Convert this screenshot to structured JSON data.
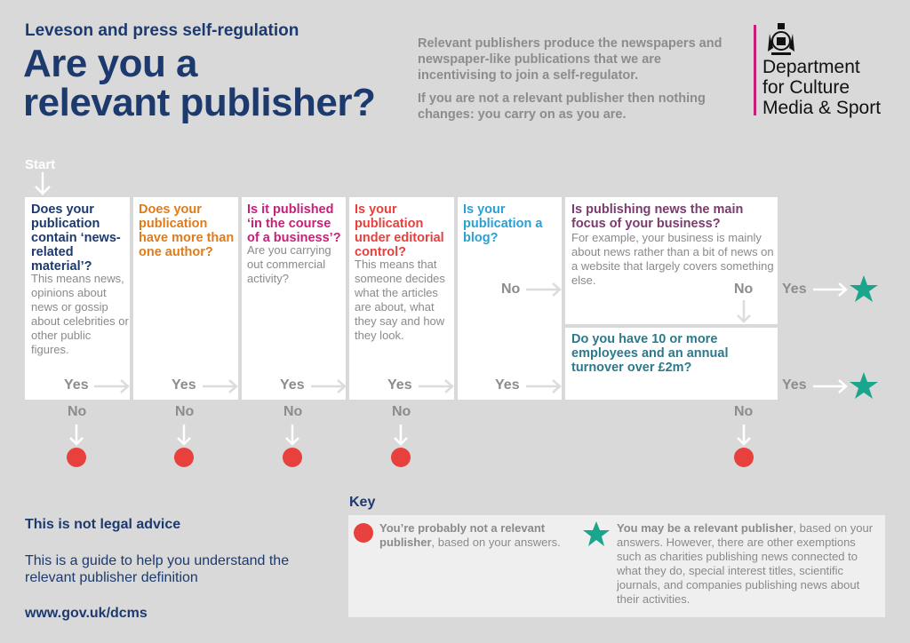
{
  "header": {
    "subtitle": "Leveson and press self-regulation",
    "title_line1": "Are you a",
    "title_line2": "relevant publisher?",
    "intro_p1": "Relevant publishers produce the newspapers and newspaper-like publications that we are incentivising to join a self-regulator.",
    "intro_p2": "If you are not a relevant publisher then nothing changes: you carry on as you are."
  },
  "logo": {
    "line1": "Department",
    "line2": "for Culture",
    "line3": "Media & Sport",
    "accent": "#c8207a",
    "icon": "royal-crest-icon"
  },
  "flow": {
    "start": "Start",
    "yes": "Yes",
    "no": "No",
    "steps": [
      {
        "question": "Does your publication contain ‘news-related material’?",
        "detail": "This means news, opinions about news or gossip about celebrities or other public figures.",
        "color": "#1d3a6e"
      },
      {
        "question": "Does your publication have more than one author?",
        "detail": "",
        "color": "#e07b1a"
      },
      {
        "question": "Is it published ‘in the course of a business’?",
        "detail": "Are you carrying out commercial activity?",
        "color": "#c8207a"
      },
      {
        "question": "Is your publication under editorial control?",
        "detail": "This means that someone decides what the articles are about, what they say and how they look.",
        "color": "#e8403c"
      },
      {
        "question": "Is your publication a blog?",
        "detail": "",
        "color": "#2aa0d4"
      },
      {
        "question": "Is publishing news the main focus of your business?",
        "detail": "For example, your business is mainly about news rather than a bit of news on a website that largely covers something else.",
        "color": "#7a3b6e"
      },
      {
        "question": "Do you have 10 or more employees and an annual turnover over £2m?",
        "detail": "",
        "color": "#2a7a8c"
      }
    ]
  },
  "key": {
    "title": "Key",
    "not_bold": "You’re probably not a relevant publisher",
    "not_rest": ", based on your answers.",
    "may_bold": "You may be a relevant publisher",
    "may_rest": ", based on your answers. However, there are other exemptions such as charities publishing news connected to what they do, special interest titles, scientific journals, and companies publishing news about their activities.",
    "red": "#e8403c",
    "green": "#1aa58c"
  },
  "footer": {
    "legal": "This is not legal advice",
    "guide": "This is a guide to help you understand the relevant publisher definition",
    "url": "www.gov.uk/dcms"
  }
}
